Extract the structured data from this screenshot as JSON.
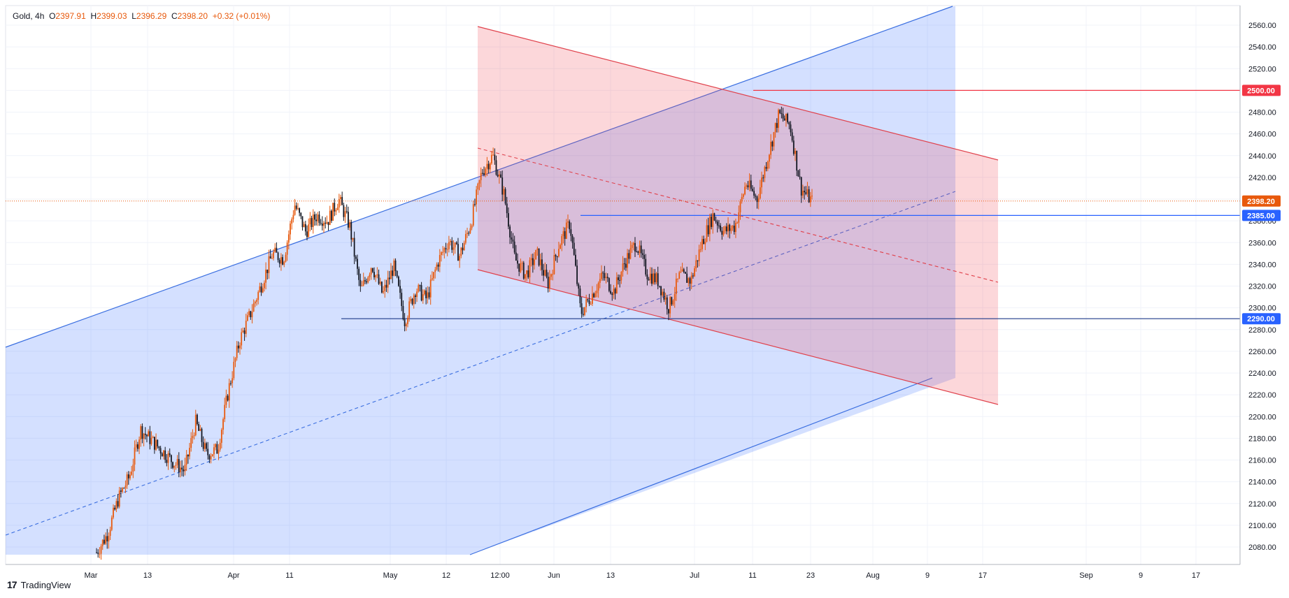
{
  "header": {
    "symbol": "Gold",
    "interval": "4h",
    "o_key": "O",
    "o_val": "2397.91",
    "h_key": "H",
    "h_val": "2399.03",
    "l_key": "L",
    "l_val": "2396.29",
    "c_key": "C",
    "c_val": "2398.20",
    "change": "+0.32 (+0.01%)"
  },
  "brand": {
    "name": "TradingView"
  },
  "colors": {
    "blue_line": "#3b6fe0",
    "blue_fill": "rgba(41,98,255,0.20)",
    "red_line": "#e0424c",
    "red_fill": "rgba(242,54,69,0.20)",
    "bull": "#e8590c",
    "bear": "#131722",
    "last_price": "#e8590c",
    "hline_blue": "#2962ff",
    "hline_red": "#f23645"
  },
  "chart_data": {
    "type": "candlestick",
    "symbol": "Gold",
    "timeframe": "4h",
    "y_ticks": [
      "2080.00",
      "2100.00",
      "2120.00",
      "2140.00",
      "2160.00",
      "2180.00",
      "2200.00",
      "2220.00",
      "2240.00",
      "2260.00",
      "2280.00",
      "2300.00",
      "2320.00",
      "2340.00",
      "2360.00",
      "2380.00",
      "2400.00",
      "2420.00",
      "2440.00",
      "2460.00",
      "2480.00",
      "2500.00",
      "2520.00",
      "2540.00",
      "2560.00"
    ],
    "x_ticks": [
      "Mar",
      "13",
      "Apr",
      "11",
      "May",
      "12",
      "12:00",
      "Jun",
      "13",
      "Jul",
      "11",
      "23",
      "Aug",
      "9",
      "17",
      "Sep",
      "9",
      "17"
    ],
    "ylim": [
      2070,
      2575
    ],
    "last_price": {
      "value": 2398.2,
      "label": "2398.20"
    },
    "price_labels": [
      {
        "value": 2500.0,
        "label": "2500.00",
        "color": "red"
      },
      {
        "value": 2385.0,
        "label": "2385.00",
        "color": "blue"
      },
      {
        "value": 2290.0,
        "label": "2290.00",
        "color": "blue"
      }
    ],
    "price_path": [
      [
        "Mar",
        2075
      ],
      [
        "Mar",
        2092
      ],
      [
        "Mar",
        2125
      ],
      [
        "13",
        2145
      ],
      [
        "13",
        2188
      ],
      [
        "13",
        2178
      ],
      [
        "13",
        2168
      ],
      [
        "13",
        2158
      ],
      [
        "13",
        2150
      ],
      [
        "13",
        2195
      ],
      [
        "13",
        2165
      ],
      [
        "13",
        2170
      ],
      [
        "13",
        2225
      ],
      [
        "Apr",
        2270
      ],
      [
        "Apr",
        2295
      ],
      [
        "Apr",
        2322
      ],
      [
        "Apr",
        2350
      ],
      [
        "11",
        2345
      ],
      [
        "11",
        2395
      ],
      [
        "11",
        2370
      ],
      [
        "11",
        2385
      ],
      [
        "11",
        2380
      ],
      [
        "11",
        2400
      ],
      [
        "11",
        2375
      ],
      [
        "May",
        2315
      ],
      [
        "May",
        2340
      ],
      [
        "May",
        2312
      ],
      [
        "May",
        2338
      ],
      [
        "May",
        2288
      ],
      [
        "May",
        2318
      ],
      [
        "May",
        2308
      ],
      [
        "12",
        2342
      ],
      [
        "12",
        2362
      ],
      [
        "12",
        2348
      ],
      [
        "12",
        2378
      ],
      [
        "12",
        2425
      ],
      [
        "12:00",
        2440
      ],
      [
        "12:00",
        2405
      ],
      [
        "12:00",
        2345
      ],
      [
        "12:00",
        2330
      ],
      [
        "12:00",
        2350
      ],
      [
        "Jun",
        2322
      ],
      [
        "Jun",
        2358
      ],
      [
        "Jun",
        2378
      ],
      [
        "Jun",
        2295
      ],
      [
        "Jun",
        2312
      ],
      [
        "13",
        2330
      ],
      [
        "13",
        2315
      ],
      [
        "13",
        2342
      ],
      [
        "13",
        2360
      ],
      [
        "13",
        2332
      ],
      [
        "13",
        2325
      ],
      [
        "Jul",
        2300
      ],
      [
        "Jul",
        2330
      ],
      [
        "Jul",
        2325
      ],
      [
        "Jul",
        2360
      ],
      [
        "Jul",
        2385
      ],
      [
        "Jul",
        2370
      ],
      [
        "Jul",
        2375
      ],
      [
        "11",
        2415
      ],
      [
        "11",
        2400
      ],
      [
        "11",
        2440
      ],
      [
        "11",
        2478
      ],
      [
        "11",
        2468
      ],
      [
        "23",
        2410
      ],
      [
        "23",
        2398
      ]
    ],
    "series": [
      {
        "name": "ascending channel",
        "type": "parallel-channel"
      },
      {
        "name": "descending channel",
        "type": "parallel-channel"
      },
      {
        "name": "horizontal levels",
        "type": "hline",
        "values": [
          2500,
          2385,
          2290
        ]
      }
    ],
    "grid": true,
    "price_scale": "right"
  }
}
